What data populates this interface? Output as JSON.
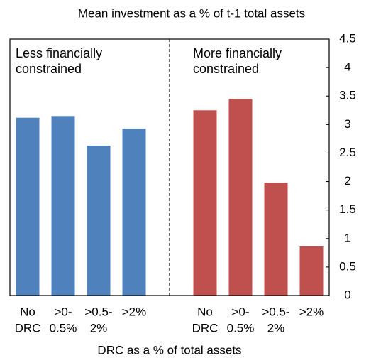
{
  "chart_data": {
    "type": "bar",
    "title": "Mean investment as a % of t-1 total assets",
    "x_label": "DRC as a % of total assets",
    "categories": [
      [
        "No",
        "DRC"
      ],
      [
        ">0-",
        "0.5%"
      ],
      [
        ">0.5-",
        "2%"
      ],
      [
        ">2%"
      ],
      null,
      [
        "No",
        "DRC"
      ],
      [
        ">0-",
        "0.5%"
      ],
      [
        ">0.5-",
        "2%"
      ],
      [
        ">2%"
      ]
    ],
    "series": [
      {
        "name": "Less financially constrained",
        "color": "#4f81bd",
        "values": [
          3.12,
          3.15,
          2.63,
          2.93,
          null,
          null,
          null,
          null,
          null
        ]
      },
      {
        "name": "More financially constrained",
        "color": "#c0504d",
        "values": [
          null,
          null,
          null,
          null,
          null,
          3.25,
          3.45,
          1.98,
          0.86
        ]
      }
    ],
    "ylim": [
      0,
      4.5
    ],
    "yticks": [
      0,
      0.5,
      1,
      1.5,
      2,
      2.5,
      3,
      3.5,
      4,
      4.5
    ],
    "y_axis_side": "right",
    "grid": false
  }
}
